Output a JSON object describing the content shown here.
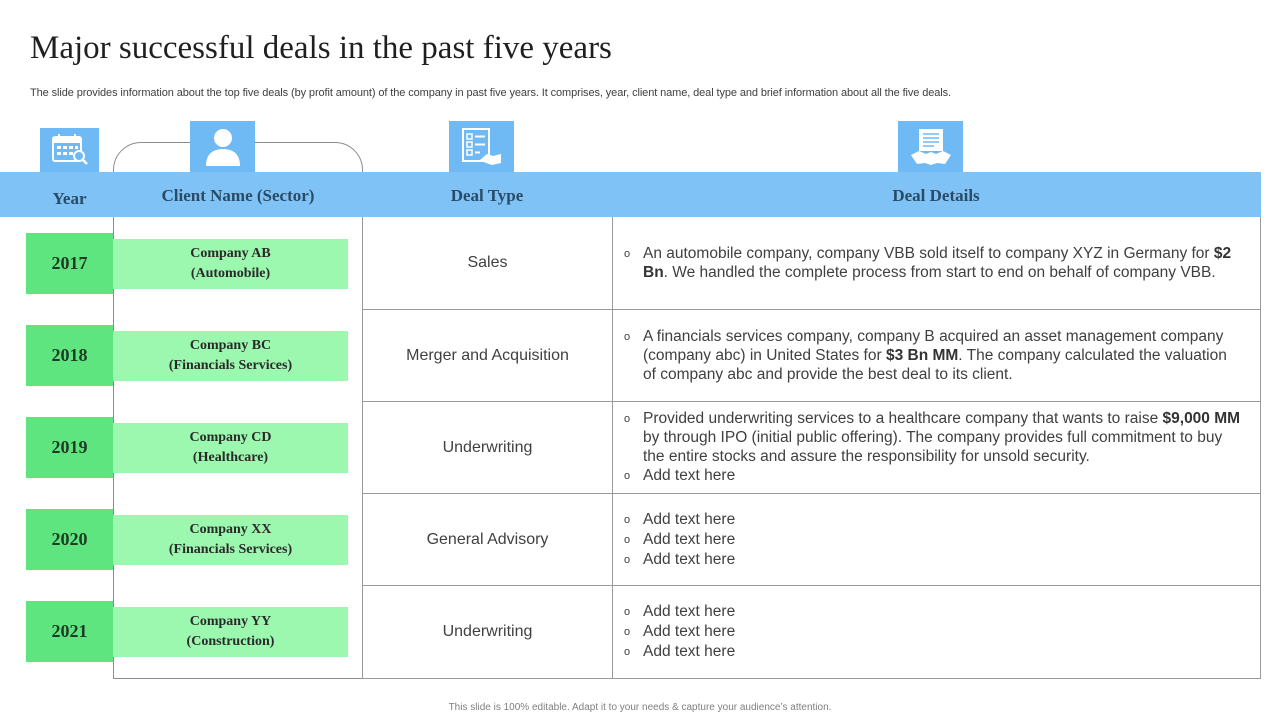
{
  "title": "Major successful deals in the past five years",
  "subtitle": "The slide provides information about the top five deals (by profit amount) of the company in past five years. It comprises, year, client name, deal type and brief information about all the five deals.",
  "footer": "This slide is 100% editable. Adapt it to your needs & capture your audience’s attention.",
  "headers": {
    "year": "Year",
    "client": "Client Name (Sector)",
    "deal_type": "Deal Type",
    "deal_details": "Deal Details"
  },
  "icons": {
    "year": "calendar-search-icon",
    "client": "user-icon",
    "deal_type": "checklist-handshake-icon",
    "deal_details": "document-handshake-icon"
  },
  "colors": {
    "header_band": "#7fc3f6",
    "icon_box": "#6fb9f5",
    "year_box": "#5ee57f",
    "client_box": "#9cf7af"
  },
  "rows": [
    {
      "year": "2017",
      "client_name": "Company AB",
      "client_sector": "(Automobile)",
      "deal_type": "Sales",
      "bullets": [
        {
          "pre": "An automobile company, company VBB sold itself to company XYZ in Germany for ",
          "bold": "$2 Bn",
          "post": ". We handled the complete process from start to end on behalf of company VBB."
        }
      ]
    },
    {
      "year": "2018",
      "client_name": "Company BC",
      "client_sector": "(Financials Services)",
      "deal_type": "Merger and Acquisition",
      "bullets": [
        {
          "pre": "A financials services company, company B acquired an asset management company (company abc) in United States for ",
          "bold": "$3 Bn MM",
          "post": ". The company calculated the valuation of company abc and provide the best deal to its client."
        }
      ]
    },
    {
      "year": "2019",
      "client_name": "Company CD",
      "client_sector": "(Healthcare)",
      "deal_type": "Underwriting",
      "bullets": [
        {
          "pre": "Provided underwriting services to a healthcare company that wants to raise ",
          "bold": "$9,000 MM",
          "post": " by through IPO (initial public offering). The company provides full commitment to buy the entire stocks and assure the responsibility for unsold security."
        },
        {
          "pre": "Add text here",
          "bold": "",
          "post": ""
        }
      ]
    },
    {
      "year": "2020",
      "client_name": "Company XX",
      "client_sector": "(Financials Services)",
      "deal_type": "General Advisory",
      "bullets": [
        {
          "pre": "Add text here",
          "bold": "",
          "post": ""
        },
        {
          "pre": "Add text here",
          "bold": "",
          "post": ""
        },
        {
          "pre": "Add text here",
          "bold": "",
          "post": ""
        }
      ]
    },
    {
      "year": "2021",
      "client_name": "Company YY",
      "client_sector": "(Construction)",
      "deal_type": "Underwriting",
      "bullets": [
        {
          "pre": "Add text here",
          "bold": "",
          "post": ""
        },
        {
          "pre": "Add text here",
          "bold": "",
          "post": ""
        },
        {
          "pre": "Add text here",
          "bold": "",
          "post": ""
        }
      ]
    }
  ]
}
